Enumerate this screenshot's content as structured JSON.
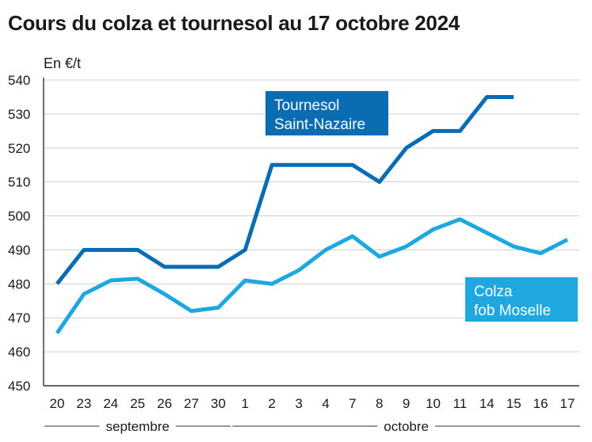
{
  "chart_data": {
    "type": "line",
    "title": "Cours du colza et tournesol au 17 octobre 2024",
    "ylabel": "En €/t",
    "ylim": [
      450,
      540
    ],
    "yticks": [
      450,
      460,
      470,
      480,
      490,
      500,
      510,
      520,
      530,
      540
    ],
    "categories": [
      "20",
      "23",
      "24",
      "25",
      "26",
      "27",
      "30",
      "1",
      "2",
      "3",
      "4",
      "7",
      "8",
      "9",
      "10",
      "11",
      "14",
      "15",
      "16",
      "17"
    ],
    "months": [
      {
        "label": "septembre",
        "from": 0,
        "to": 6
      },
      {
        "label": "octobre",
        "from": 7,
        "to": 19
      }
    ],
    "grid": true,
    "series": [
      {
        "name_lines": [
          "Tournesol",
          "Saint-Nazaire"
        ],
        "color": "#0a6db3",
        "values": [
          480,
          490,
          490,
          490,
          485,
          485,
          485,
          490,
          515,
          515,
          515,
          515,
          510,
          520,
          525,
          525,
          535,
          535,
          null,
          null
        ]
      },
      {
        "name_lines": [
          "Colza",
          "fob Moselle"
        ],
        "color": "#1fa8e0",
        "values": [
          465.5,
          477,
          481,
          481.5,
          477,
          472,
          473,
          481,
          480,
          484,
          490,
          494,
          488,
          491,
          496,
          499,
          495,
          491,
          489,
          493
        ]
      }
    ]
  }
}
